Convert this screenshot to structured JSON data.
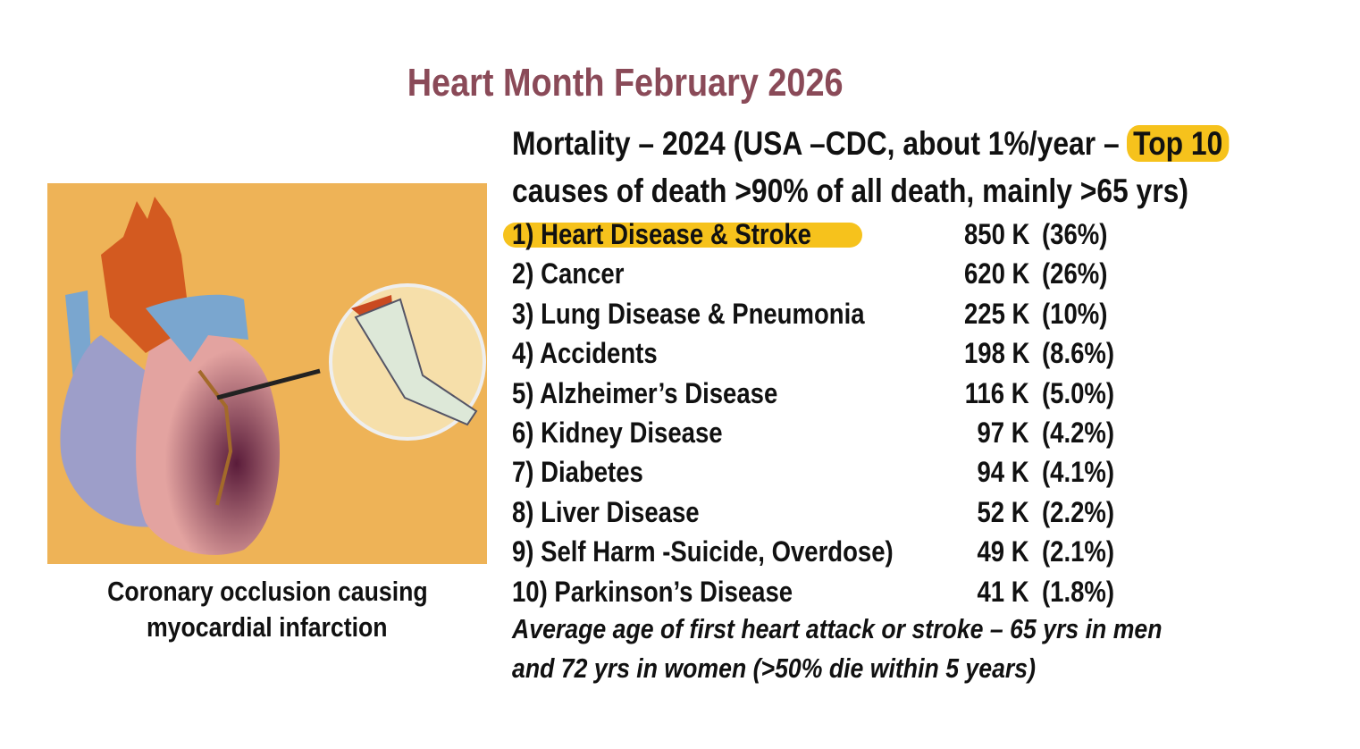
{
  "title": "Heart Month February 2026",
  "figure": {
    "caption": [
      "Coronary occlusion causing",
      "myocardial infarction"
    ]
  },
  "heading": {
    "line1": "Mortality – 2024 (USA –CDC, about 1%/year –",
    "highlight": "Top 10",
    "line2": "causes of death >90% of all death, mainly >65 yrs)"
  },
  "causes": [
    {
      "name": "1) Heart Disease & Stroke",
      "deaths": "850 K",
      "share": "(36%)"
    },
    {
      "name": "2) Cancer",
      "deaths": "620 K",
      "share": "(26%)"
    },
    {
      "name": "3) Lung Disease & Pneumonia",
      "deaths": "225 K",
      "share": "(10%)"
    },
    {
      "name": "4) Accidents",
      "deaths": "198 K",
      "share": "(8.6%)"
    },
    {
      "name": "5) Alzheimer’s Disease",
      "deaths": "116 K",
      "share": "(5.0%)"
    },
    {
      "name": "6) Kidney Disease",
      "deaths": "97 K",
      "share": "(4.2%)"
    },
    {
      "name": "7) Diabetes",
      "deaths": "94 K",
      "share": "(4.1%)"
    },
    {
      "name": "8) Liver Disease",
      "deaths": "52 K",
      "share": "(2.2%)"
    },
    {
      "name": "9) Self Harm -Suicide, Overdose)",
      "deaths": "49 K",
      "share": "(2.1%)"
    },
    {
      "name": "10) Parkinson’s Disease",
      "deaths": "41 K",
      "share": "(1.8%)"
    }
  ],
  "footnote": [
    "Average age of first heart attack or stroke – 65 yrs in men",
    "and 72 yrs in women (>50% die within 5 years)"
  ]
}
